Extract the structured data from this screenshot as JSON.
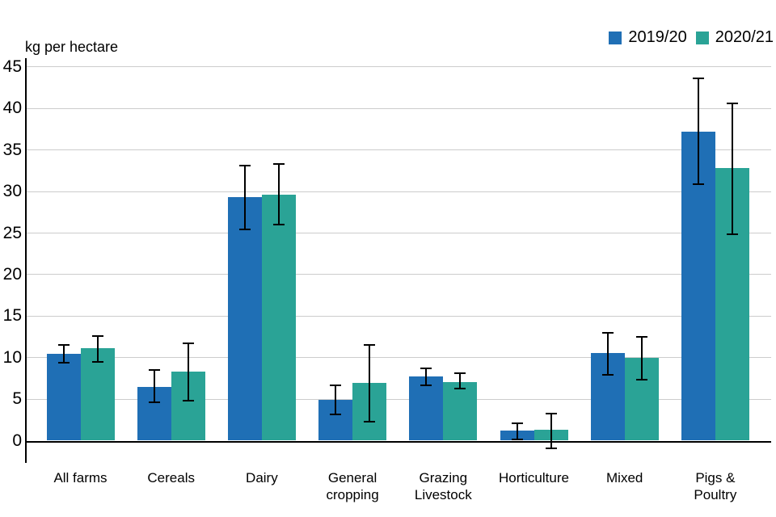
{
  "chart_data": {
    "type": "bar",
    "title": "",
    "ylabel": "kg per hectare",
    "xlabel": "",
    "categories": [
      "All farms",
      "Cereals",
      "Dairy",
      "General\ncropping",
      "Grazing\nLivestock",
      "Horticulture",
      "Mixed",
      "Pigs &\nPoultry"
    ],
    "series": [
      {
        "name": "2019/20",
        "color": "#1f6fb5",
        "values": [
          10.5,
          6.5,
          29.3,
          4.9,
          7.7,
          1.2,
          10.6,
          37.2
        ],
        "error_low": [
          9.4,
          4.6,
          25.4,
          3.2,
          6.7,
          0.1,
          7.9,
          30.9
        ],
        "error_high": [
          11.5,
          8.5,
          33.1,
          6.7,
          8.7,
          2.1,
          13.0,
          43.6
        ]
      },
      {
        "name": "2020/21",
        "color": "#2aa396",
        "values": [
          11.1,
          8.3,
          29.6,
          7.0,
          7.1,
          1.3,
          10.0,
          32.8
        ],
        "error_low": [
          9.5,
          4.8,
          26.0,
          2.3,
          6.3,
          -0.9,
          7.3,
          24.9
        ],
        "error_high": [
          12.6,
          11.7,
          33.3,
          11.5,
          8.1,
          3.3,
          12.5,
          40.6
        ]
      }
    ],
    "ylim": [
      0,
      45
    ],
    "yticks": [
      0,
      5,
      10,
      15,
      20,
      25,
      30,
      35,
      40,
      45
    ],
    "grid": "horizontal",
    "error_bars": true,
    "legend_position": "top-right"
  },
  "colors": {
    "series_2019_20": "#1f6fb5",
    "series_2020_21": "#2aa396",
    "gridline": "#cccccc",
    "axis": "#000000",
    "error_bar": "#000000",
    "background": "#ffffff"
  }
}
